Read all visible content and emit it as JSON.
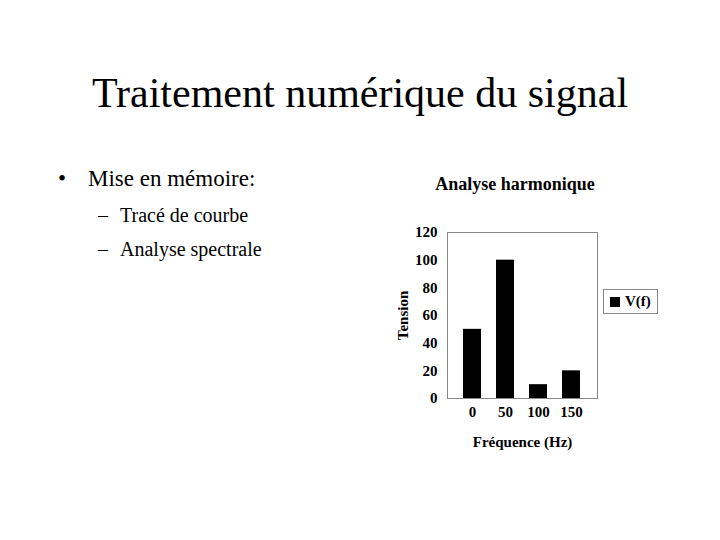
{
  "slide": {
    "title": "Traitement numérique du signal",
    "bullets": [
      {
        "text": "Mise en mémoire:",
        "items": [
          "Tracé de courbe",
          "Analyse spectrale"
        ]
      }
    ]
  },
  "chart_data": {
    "type": "bar",
    "title": "Analyse harmonique",
    "x_label": "Fréquence (Hz)",
    "y_label": "Tension",
    "categories": [
      "0",
      "50",
      "100",
      "150"
    ],
    "series": [
      {
        "name": "V(f)",
        "color": "#000000",
        "values": [
          50,
          100,
          10,
          20
        ]
      }
    ],
    "ylim": [
      0,
      120
    ],
    "yticks": [
      0,
      20,
      40,
      60,
      80,
      100,
      120
    ],
    "grid": false,
    "legend": "right"
  }
}
